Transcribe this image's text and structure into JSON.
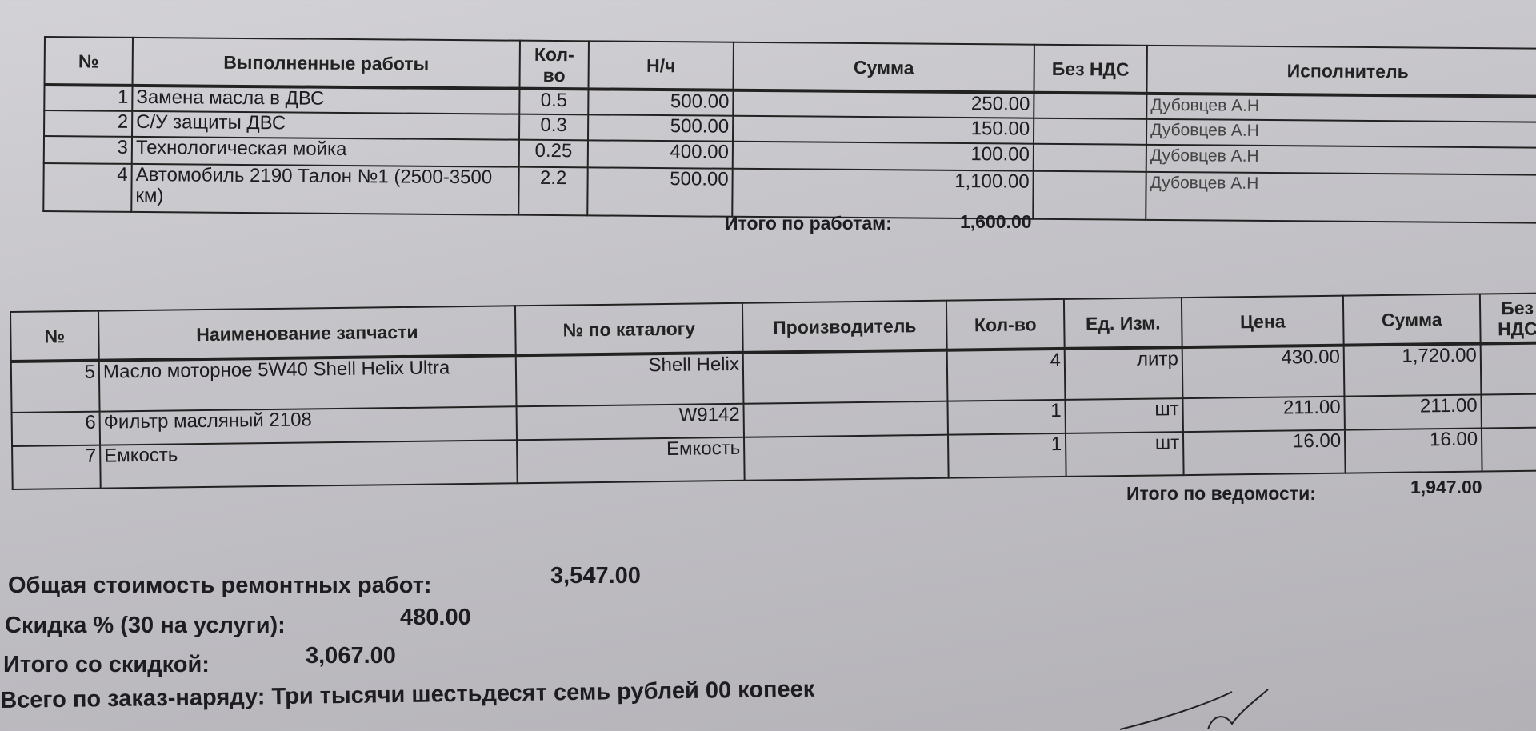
{
  "works": {
    "headers": [
      "№",
      "Выполненные работы",
      "Кол-во",
      "Н/ч",
      "Сумма",
      "Без НДС",
      "Исполнитель"
    ],
    "rows": [
      {
        "n": "1",
        "name": "Замена масла в ДВС",
        "qty": "0.5",
        "rate": "500.00",
        "sum": "250.00",
        "novat": "",
        "exec": "Дубовцев А.Н"
      },
      {
        "n": "2",
        "name": "С/У защиты ДВС",
        "qty": "0.3",
        "rate": "500.00",
        "sum": "150.00",
        "novat": "",
        "exec": "Дубовцев А.Н"
      },
      {
        "n": "3",
        "name": "Технологическая мойка",
        "qty": "0.25",
        "rate": "400.00",
        "sum": "100.00",
        "novat": "",
        "exec": "Дубовцев А.Н"
      },
      {
        "n": "4",
        "name": "Автомобиль 2190 Талон №1 (2500-3500 км)",
        "qty": "2.2",
        "rate": "500.00",
        "sum": "1,100.00",
        "novat": "",
        "exec": "Дубовцев А.Н"
      }
    ],
    "total_label": "Итого по работам:",
    "total_value": "1,600.00"
  },
  "parts": {
    "headers": [
      "№",
      "Наименование запчасти",
      "№ по каталогу",
      "Производитель",
      "Кол-во",
      "Ед. Изм.",
      "Цена",
      "Сумма",
      "Без НДС"
    ],
    "rows": [
      {
        "n": "5",
        "name": "Масло моторное 5W40 Shell Helix Ultra",
        "catalog": "Shell Helix",
        "maker": "",
        "qty": "4",
        "unit": "литр",
        "price": "430.00",
        "sum": "1,720.00"
      },
      {
        "n": "6",
        "name": "Фильтр масляный 2108",
        "catalog": "W9142",
        "maker": "",
        "qty": "1",
        "unit": "шт",
        "price": "211.00",
        "sum": "211.00"
      },
      {
        "n": "7",
        "name": "Емкость",
        "catalog": "Емкость",
        "maker": "",
        "qty": "1",
        "unit": "шт",
        "price": "16.00",
        "sum": "16.00"
      }
    ],
    "total_label": "Итого по ведомости:",
    "total_value": "1,947.00"
  },
  "summary": {
    "total_label": "Общая стоимость ремонтных работ:",
    "total_value": "3,547.00",
    "discount_label": "Скидка % (30 на услуги):",
    "discount_value": "480.00",
    "after_label": "Итого со скидкой:",
    "after_value": "3,067.00",
    "words": "Всего по заказ-наряду: Три тысячи шестьдесят семь рублей 00 копеек"
  }
}
